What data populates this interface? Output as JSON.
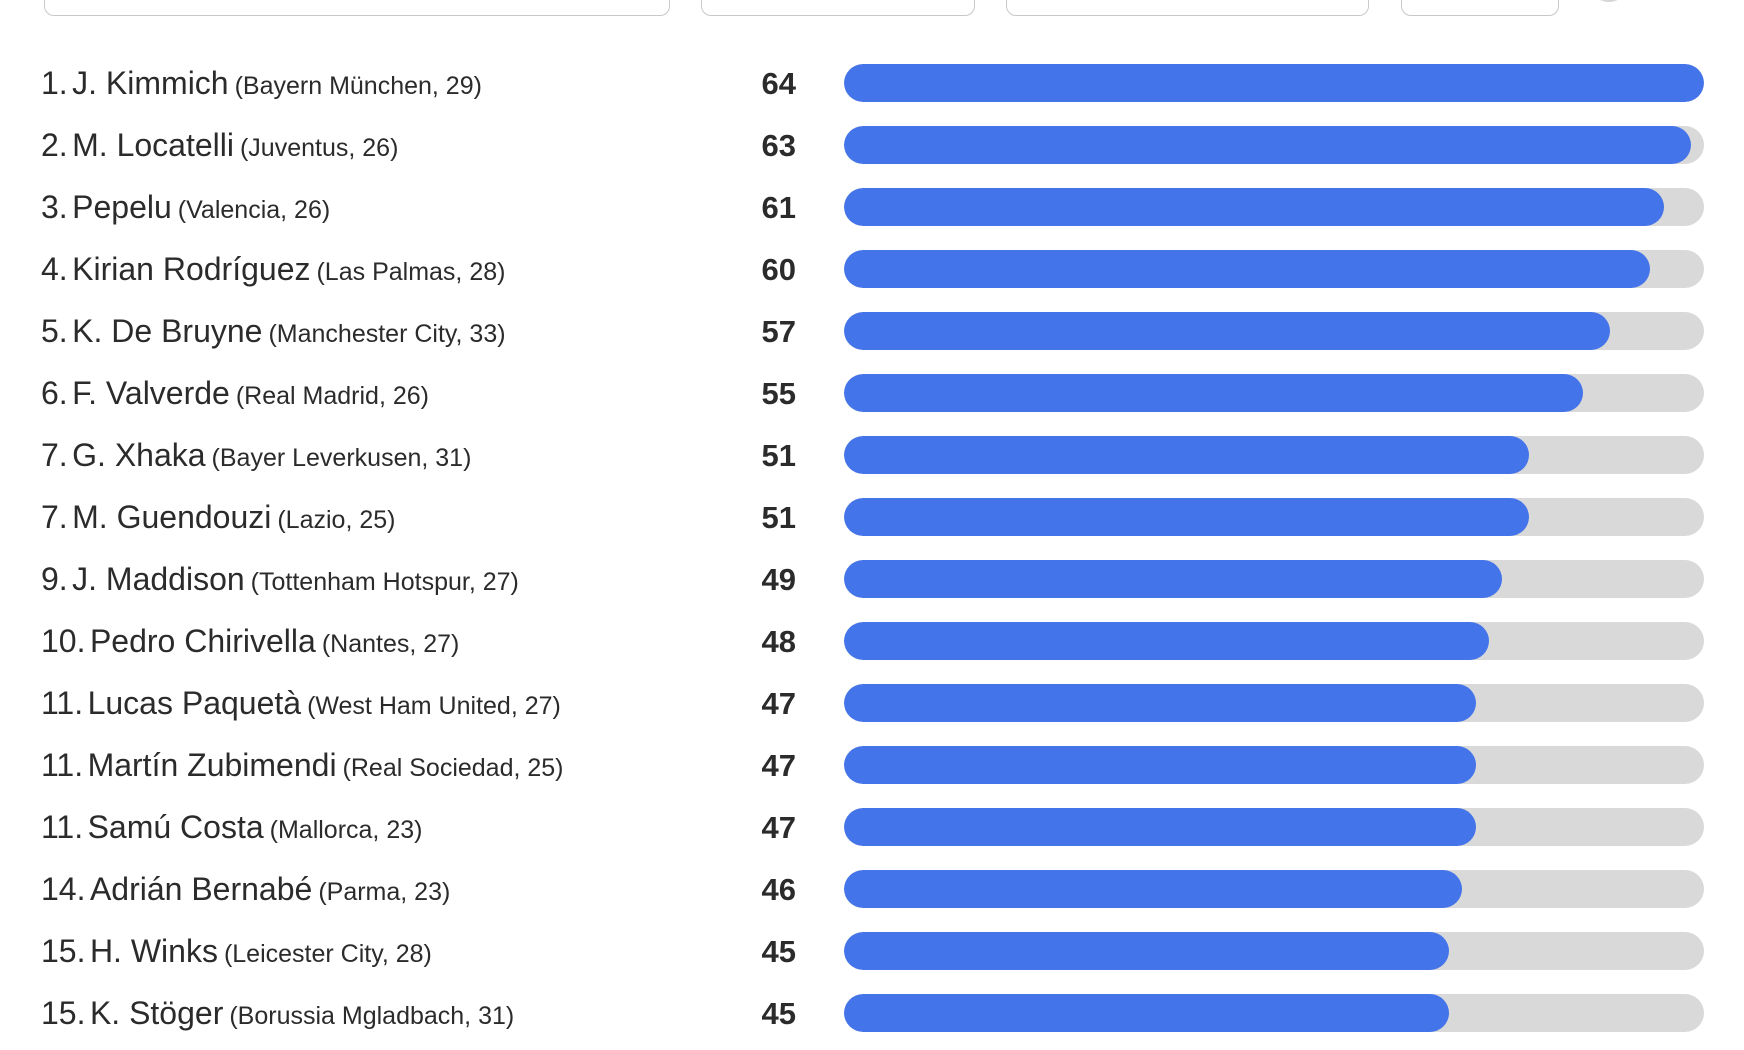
{
  "chart_data": {
    "type": "bar",
    "orientation": "horizontal",
    "xlim": [
      0,
      64
    ],
    "bar_color": "#4474e9",
    "track_color": "#d9d9d9",
    "rows": [
      {
        "rank": "1.",
        "name": "J. Kimmich",
        "meta": "(Bayern München, 29)",
        "value": 64
      },
      {
        "rank": "2.",
        "name": "M. Locatelli",
        "meta": "(Juventus, 26)",
        "value": 63
      },
      {
        "rank": "3.",
        "name": "Pepelu",
        "meta": "(Valencia, 26)",
        "value": 61
      },
      {
        "rank": "4.",
        "name": "Kirian Rodríguez",
        "meta": "(Las Palmas, 28)",
        "value": 60
      },
      {
        "rank": "5.",
        "name": "K. De Bruyne",
        "meta": "(Manchester City, 33)",
        "value": 57
      },
      {
        "rank": "6.",
        "name": "F. Valverde",
        "meta": "(Real Madrid, 26)",
        "value": 55
      },
      {
        "rank": "7.",
        "name": "G. Xhaka",
        "meta": "(Bayer Leverkusen, 31)",
        "value": 51
      },
      {
        "rank": "7.",
        "name": "M. Guendouzi",
        "meta": "(Lazio, 25)",
        "value": 51
      },
      {
        "rank": "9.",
        "name": "J. Maddison",
        "meta": "(Tottenham Hotspur, 27)",
        "value": 49
      },
      {
        "rank": "10.",
        "name": "Pedro Chirivella",
        "meta": "(Nantes, 27)",
        "value": 48
      },
      {
        "rank": "11.",
        "name": "Lucas Paquetà",
        "meta": "(West Ham United, 27)",
        "value": 47
      },
      {
        "rank": "11.",
        "name": "Martín Zubimendi",
        "meta": "(Real Sociedad, 25)",
        "value": 47
      },
      {
        "rank": "11.",
        "name": "Samú Costa",
        "meta": "(Mallorca, 23)",
        "value": 47
      },
      {
        "rank": "14.",
        "name": "Adrián Bernabé",
        "meta": "(Parma, 23)",
        "value": 46
      },
      {
        "rank": "15.",
        "name": "H. Winks",
        "meta": "(Leicester City, 28)",
        "value": 45
      },
      {
        "rank": "15.",
        "name": "K. Stöger",
        "meta": "(Borussia Mgladbach, 31)",
        "value": 45
      }
    ]
  }
}
